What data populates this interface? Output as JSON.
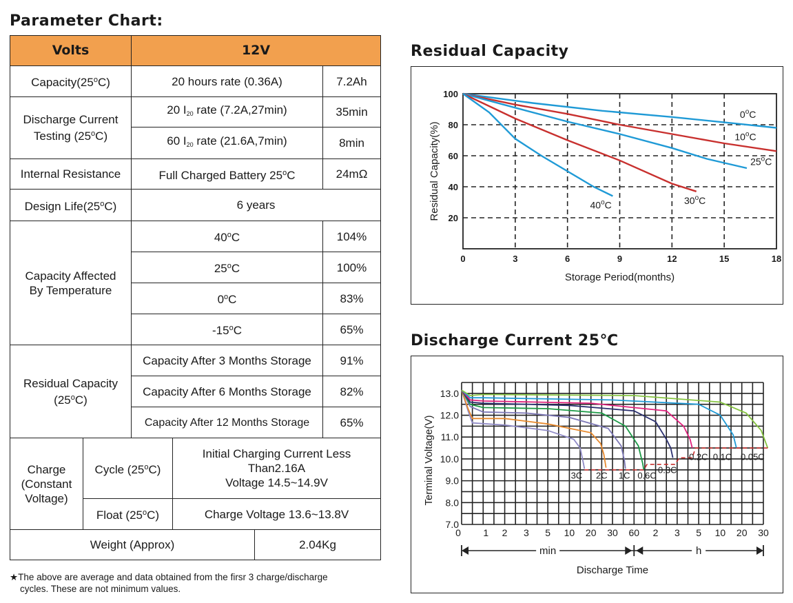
{
  "parameter_chart": {
    "title": "Parameter Chart:",
    "header": {
      "col1": "Volts",
      "col2": "12V"
    },
    "capacity": {
      "label": "Capacity(25",
      "unit": "C)",
      "rate": "20 hours rate (0.36A)",
      "value": "7.2Ah"
    },
    "discharge_testing": {
      "label_l1": "Discharge Current",
      "label_l2a": "Testing (25",
      "label_l2b": "C)",
      "row1": {
        "pre": "20  I",
        "sub": "20",
        "post": " rate  (7.2A,27min)",
        "value": "35min"
      },
      "row2": {
        "pre": "60  I",
        "sub": "20",
        "post": " rate (21.6A,7min)",
        "value": "8min"
      }
    },
    "internal_resistance": {
      "label": "Internal Resistance",
      "cond_a": "Full Charged Battery 25",
      "cond_b": "C",
      "value": "24mΩ"
    },
    "design_life": {
      "label": "Design Life(25",
      "unit": "C)",
      "value": "6 years"
    },
    "temp": {
      "label_l1": "Capacity Affected",
      "label_l2": "By Temperature",
      "rows": [
        {
          "t": "40",
          "u": "C",
          "v": "104%"
        },
        {
          "t": "25",
          "u": "C",
          "v": "100%"
        },
        {
          "t": "0",
          "u": "C",
          "v": "83%"
        },
        {
          "t": "-15",
          "u": "C",
          "v": "65%"
        }
      ]
    },
    "residual": {
      "label_l1": "Residual Capacity",
      "label_l2a": "(25",
      "label_l2b": "C)",
      "rows": [
        {
          "c": "Capacity After 3 Months Storage",
          "v": "91%"
        },
        {
          "c": "Capacity After 6 Months Storage",
          "v": "82%"
        },
        {
          "c": "Capacity After 12 Months Storage",
          "v": "65%"
        }
      ]
    },
    "charge": {
      "label_l1": "Charge",
      "label_l2": "(Constant",
      "label_l3": "Voltage)",
      "cycle_a": "Cycle (25",
      "cycle_b": "C)",
      "cycle_l1": "Initial Charging Current Less",
      "cycle_l2": "Than2.16A",
      "cycle_l3": "Voltage 14.5~14.9V",
      "float_a": "Float (25",
      "float_b": "C)",
      "float_value": "Charge Voltage 13.6~13.8V"
    },
    "weight": {
      "label": "Weight (Approx)",
      "value": "2.04Kg"
    },
    "deg": "o",
    "footnote_l1": "★The above are average and data obtained from the firsr 3 charge/discharge",
    "footnote_l2": "cycles. These are not minimum values."
  },
  "chart_data": [
    {
      "type": "line",
      "title": "Residual Capacity",
      "xlabel": "Storage Period(months)",
      "ylabel": "Residual Capacity(%)",
      "xlim": [
        0,
        18
      ],
      "ylim": [
        0,
        100
      ],
      "xticks": [
        0,
        3,
        6,
        9,
        12,
        15,
        18
      ],
      "yticks": [
        20,
        40,
        60,
        80,
        100
      ],
      "grid": "dashed",
      "series": [
        {
          "name": "0",
          "label_unit": "C",
          "color": "#1f9ad6",
          "points": [
            [
              0,
              100
            ],
            [
              4,
              94
            ],
            [
              8,
              89
            ],
            [
              12,
              85
            ],
            [
              15.5,
              81
            ],
            [
              18,
              78
            ]
          ]
        },
        {
          "name": "10",
          "label_unit": "C",
          "color": "#c8302e",
          "points": [
            [
              0,
              100
            ],
            [
              3,
              93
            ],
            [
              6,
              87
            ],
            [
              9,
              80
            ],
            [
              12,
              74
            ],
            [
              15,
              68
            ],
            [
              18,
              63
            ]
          ]
        },
        {
          "name": "25",
          "label_unit": "C",
          "color": "#1f9ad6",
          "points": [
            [
              0,
              100
            ],
            [
              3,
              91
            ],
            [
              6,
              82
            ],
            [
              9,
              74
            ],
            [
              12,
              65
            ],
            [
              14,
              58
            ],
            [
              16.3,
              52
            ]
          ]
        },
        {
          "name": "30",
          "label_unit": "C",
          "color": "#c8302e",
          "points": [
            [
              0,
              100
            ],
            [
              3,
              84
            ],
            [
              6,
              70
            ],
            [
              9,
              57
            ],
            [
              12,
              42
            ],
            [
              13.4,
              37
            ]
          ]
        },
        {
          "name": "40",
          "label_unit": "C",
          "color": "#1f9ad6",
          "points": [
            [
              0,
              100
            ],
            [
              1.5,
              88
            ],
            [
              3,
              71
            ],
            [
              4.5,
              60
            ],
            [
              6,
              50
            ],
            [
              7.5,
              40
            ],
            [
              8.6,
              34
            ]
          ]
        }
      ]
    },
    {
      "type": "line",
      "title": "Discharge Current 25℃",
      "xlabel": "Discharge Time",
      "ylabel": "Terminal Voltage(V)",
      "ylim": [
        7.0,
        13.0
      ],
      "yticks": [
        "7.0",
        "8.0",
        "9.0",
        "10.0",
        "11.0",
        "12.0",
        "13.0"
      ],
      "xticks": [
        "0",
        "1",
        "2",
        "3",
        "5",
        "10",
        "20",
        "30",
        "60",
        "2",
        "3",
        "5",
        "10",
        "20",
        "30"
      ],
      "unit_min": "min",
      "unit_h": "h",
      "note": "x axis positions are in tick-index units (0 = 0 min, 8 = 60 min, 14 = 30 h)",
      "series": [
        {
          "name": "3C",
          "color": "#8f8ac6",
          "points": [
            [
              0,
              13.15
            ],
            [
              0.3,
              12.2
            ],
            [
              0.5,
              11.65
            ],
            [
              2,
              11.55
            ],
            [
              4,
              11.3
            ],
            [
              5.2,
              10.9
            ],
            [
              5.5,
              10.5
            ],
            [
              5.65,
              9.8
            ],
            [
              5.7,
              9.55
            ]
          ]
        },
        {
          "name": "2C",
          "color": "#e7892d",
          "points": [
            [
              0,
              13.15
            ],
            [
              0.3,
              12.3
            ],
            [
              0.5,
              11.85
            ],
            [
              2,
              11.85
            ],
            [
              4,
              11.6
            ],
            [
              6,
              11.2
            ],
            [
              6.45,
              10.7
            ],
            [
              6.6,
              10.2
            ],
            [
              6.7,
              9.6
            ]
          ]
        },
        {
          "name": "1C",
          "color": "#7d78b7",
          "points": [
            [
              0,
              13.15
            ],
            [
              0.4,
              12.4
            ],
            [
              1,
              12.15
            ],
            [
              3,
              12.1
            ],
            [
              5,
              11.9
            ],
            [
              6.8,
              11.4
            ],
            [
              7.4,
              10.6
            ],
            [
              7.55,
              9.95
            ],
            [
              7.6,
              9.55
            ]
          ]
        },
        {
          "name": "0.6C",
          "color": "#1c9a46",
          "points": [
            [
              0,
              13.15
            ],
            [
              0.4,
              12.5
            ],
            [
              1,
              12.35
            ],
            [
              4,
              12.3
            ],
            [
              6.5,
              12.1
            ],
            [
              7.6,
              11.5
            ],
            [
              8.2,
              10.6
            ],
            [
              8.4,
              9.8
            ],
            [
              8.45,
              9.5
            ]
          ]
        },
        {
          "name": "0.3C",
          "color": "#2a2f6f",
          "points": [
            [
              0,
              13.15
            ],
            [
              0.4,
              12.6
            ],
            [
              1,
              12.55
            ],
            [
              5,
              12.45
            ],
            [
              8,
              12.2
            ],
            [
              9,
              11.7
            ],
            [
              9.5,
              10.9
            ],
            [
              9.7,
              10.5
            ],
            [
              9.8,
              10.05
            ]
          ]
        },
        {
          "name": "0.2C",
          "color": "#e0217d",
          "points": [
            [
              0,
              13.15
            ],
            [
              0.4,
              12.7
            ],
            [
              1,
              12.65
            ],
            [
              6,
              12.55
            ],
            [
              9.5,
              12.2
            ],
            [
              10.3,
              11.5
            ],
            [
              10.6,
              10.9
            ],
            [
              10.7,
              10.5
            ]
          ]
        },
        {
          "name": "0.1C",
          "color": "#1f9ad6",
          "points": [
            [
              0,
              13.15
            ],
            [
              0.4,
              12.8
            ],
            [
              1,
              12.8
            ],
            [
              7,
              12.7
            ],
            [
              11,
              12.5
            ],
            [
              12,
              12.0
            ],
            [
              12.6,
              11.1
            ],
            [
              12.75,
              10.5
            ]
          ]
        },
        {
          "name": "0.05C",
          "color": "#86c440",
          "points": [
            [
              0,
              13.15
            ],
            [
              0.4,
              12.9
            ],
            [
              1,
              12.95
            ],
            [
              8,
              12.9
            ],
            [
              12,
              12.6
            ],
            [
              13.2,
              12.1
            ],
            [
              13.9,
              11.3
            ],
            [
              14.2,
              10.5
            ]
          ]
        }
      ],
      "cutoff": {
        "color": "#c8302e",
        "points": [
          [
            5.7,
            9.5
          ],
          [
            8.45,
            9.5
          ],
          [
            8.6,
            9.75
          ],
          [
            9.9,
            9.75
          ],
          [
            10.1,
            10.05
          ],
          [
            10.7,
            10.05
          ],
          [
            10.85,
            10.5
          ],
          [
            14.25,
            10.5
          ]
        ]
      }
    }
  ]
}
